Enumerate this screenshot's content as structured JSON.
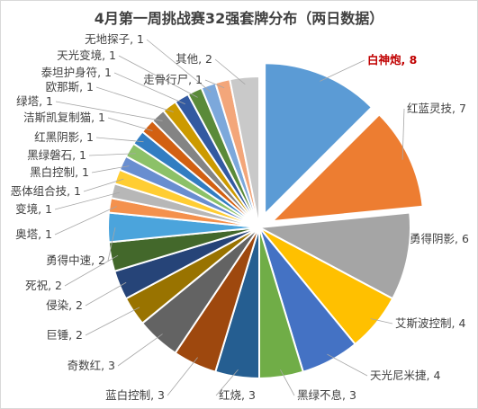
{
  "chart_data": {
    "type": "pie",
    "title": "4月第一周挑战赛32强套牌分布（两日数据）",
    "slices": [
      {
        "label": "白神炮, 8",
        "value": 8,
        "color": "#5b9bd5",
        "exploded": true,
        "highlight": true
      },
      {
        "label": "红蓝灵技, 7",
        "value": 7,
        "color": "#ed7d31",
        "exploded": true
      },
      {
        "label": "勇得阴影, 6",
        "value": 6,
        "color": "#a5a5a5"
      },
      {
        "label": "艾斯波控制, 4",
        "value": 4,
        "color": "#ffc000"
      },
      {
        "label": "天光尼米捷, 4",
        "value": 4,
        "color": "#4472c4"
      },
      {
        "label": "黑绿不息, 3",
        "value": 3,
        "color": "#70ad47"
      },
      {
        "label": "红烧, 3",
        "value": 3,
        "color": "#255e91"
      },
      {
        "label": "蓝白控制, 3",
        "value": 3,
        "color": "#9e480e"
      },
      {
        "label": "奇数红, 3",
        "value": 3,
        "color": "#636363"
      },
      {
        "label": "巨锤, 2",
        "value": 2,
        "color": "#997300"
      },
      {
        "label": "侵染, 2",
        "value": 2,
        "color": "#264478"
      },
      {
        "label": "死祝, 2",
        "value": 2,
        "color": "#43682b"
      },
      {
        "label": "勇得中速, 2",
        "value": 2,
        "color": "#4ba4dc"
      },
      {
        "label": "奥塔, 1",
        "value": 1,
        "color": "#f4914d"
      },
      {
        "label": "变境, 1",
        "value": 1,
        "color": "#b7b7b7"
      },
      {
        "label": "恶体组合技, 1",
        "value": 1,
        "color": "#ffcd33"
      },
      {
        "label": "黑白控制, 1",
        "value": 1,
        "color": "#698ed0"
      },
      {
        "label": "黑绿磐石, 1",
        "value": 1,
        "color": "#8cc168"
      },
      {
        "label": "红黑阴影, 1",
        "value": 1,
        "color": "#327dc2"
      },
      {
        "label": "洁斯凯复制猫, 1",
        "value": 1,
        "color": "#d26012"
      },
      {
        "label": "绿塔, 1",
        "value": 1,
        "color": "#848484"
      },
      {
        "label": "欧那斯, 1",
        "value": 1,
        "color": "#cc9a00"
      },
      {
        "label": "泰坦护身符, 1",
        "value": 1,
        "color": "#335aa1"
      },
      {
        "label": "天光变境, 1",
        "value": 1,
        "color": "#5a8a39"
      },
      {
        "label": "无地探子, 1",
        "value": 1,
        "color": "#7ca8db"
      },
      {
        "label": "走骨行尸, 1",
        "value": 1,
        "color": "#f3a67a"
      },
      {
        "label": "其他, 2",
        "value": 2,
        "color": "#c9c9c9"
      }
    ]
  }
}
